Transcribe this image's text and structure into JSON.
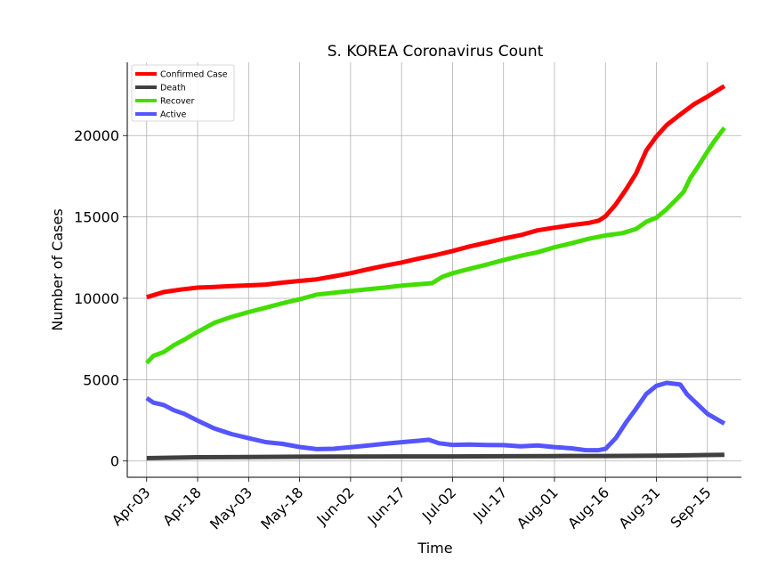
{
  "chart_data": {
    "type": "line",
    "title": "S. KOREA Coronavirus Count",
    "xlabel": "Time",
    "ylabel": "Number of Cases",
    "x_ticks": [
      "Apr-03",
      "Apr-18",
      "May-03",
      "May-18",
      "Jun-02",
      "Jun-17",
      "Jul-02",
      "Jul-17",
      "Aug-01",
      "Aug-16",
      "Aug-31",
      "Sep-15"
    ],
    "y_ticks": [
      0,
      5000,
      10000,
      15000,
      20000
    ],
    "ylim": [
      -1000,
      24500
    ],
    "x_start": "2020-04-03",
    "x_end": "2020-09-20",
    "grid": true,
    "legend_position": "top-left",
    "series": [
      {
        "name": "Confirmed Case",
        "color": "#ff0000",
        "points": [
          [
            "2020-04-03",
            10062
          ],
          [
            "2020-04-08",
            10384
          ],
          [
            "2020-04-13",
            10537
          ],
          [
            "2020-04-18",
            10653
          ],
          [
            "2020-04-23",
            10702
          ],
          [
            "2020-04-28",
            10752
          ],
          [
            "2020-05-03",
            10793
          ],
          [
            "2020-05-08",
            10840
          ],
          [
            "2020-05-13",
            10962
          ],
          [
            "2020-05-18",
            11065
          ],
          [
            "2020-05-23",
            11165
          ],
          [
            "2020-05-28",
            11344
          ],
          [
            "2020-06-02",
            11541
          ],
          [
            "2020-06-07",
            11776
          ],
          [
            "2020-06-12",
            12003
          ],
          [
            "2020-06-17",
            12198
          ],
          [
            "2020-06-22",
            12438
          ],
          [
            "2020-06-27",
            12653
          ],
          [
            "2020-07-02",
            12904
          ],
          [
            "2020-07-07",
            13181
          ],
          [
            "2020-07-12",
            13417
          ],
          [
            "2020-07-17",
            13672
          ],
          [
            "2020-07-22",
            13879
          ],
          [
            "2020-07-27",
            14175
          ],
          [
            "2020-08-01",
            14336
          ],
          [
            "2020-08-06",
            14499
          ],
          [
            "2020-08-11",
            14626
          ],
          [
            "2020-08-14",
            14770
          ],
          [
            "2020-08-16",
            15039
          ],
          [
            "2020-08-19",
            15761
          ],
          [
            "2020-08-22",
            16670
          ],
          [
            "2020-08-25",
            17665
          ],
          [
            "2020-08-28",
            19077
          ],
          [
            "2020-08-31",
            19947
          ],
          [
            "2020-09-03",
            20644
          ],
          [
            "2020-09-07",
            21296
          ],
          [
            "2020-09-11",
            21919
          ],
          [
            "2020-09-15",
            22391
          ],
          [
            "2020-09-20",
            23045
          ]
        ]
      },
      {
        "name": "Death",
        "color": "#404040",
        "points": [
          [
            "2020-04-03",
            174
          ],
          [
            "2020-04-18",
            232
          ],
          [
            "2020-05-03",
            250
          ],
          [
            "2020-05-18",
            263
          ],
          [
            "2020-06-02",
            273
          ],
          [
            "2020-06-17",
            279
          ],
          [
            "2020-07-02",
            283
          ],
          [
            "2020-07-17",
            292
          ],
          [
            "2020-08-01",
            301
          ],
          [
            "2020-08-16",
            306
          ],
          [
            "2020-08-31",
            326
          ],
          [
            "2020-09-15",
            367
          ],
          [
            "2020-09-20",
            385
          ]
        ]
      },
      {
        "name": "Recover",
        "color": "#44dd00",
        "points": [
          [
            "2020-04-03",
            6021
          ],
          [
            "2020-04-05",
            6463
          ],
          [
            "2020-04-08",
            6694
          ],
          [
            "2020-04-11",
            7117
          ],
          [
            "2020-04-14",
            7447
          ],
          [
            "2020-04-18",
            7937
          ],
          [
            "2020-04-23",
            8501
          ],
          [
            "2020-04-28",
            8854
          ],
          [
            "2020-05-03",
            9149
          ],
          [
            "2020-05-08",
            9419
          ],
          [
            "2020-05-13",
            9695
          ],
          [
            "2020-05-18",
            9938
          ],
          [
            "2020-05-23",
            10226
          ],
          [
            "2020-05-28",
            10340
          ],
          [
            "2020-06-02",
            10446
          ],
          [
            "2020-06-07",
            10552
          ],
          [
            "2020-06-12",
            10654
          ],
          [
            "2020-06-17",
            10774
          ],
          [
            "2020-06-22",
            10856
          ],
          [
            "2020-06-26",
            10930
          ],
          [
            "2020-06-29",
            11317
          ],
          [
            "2020-07-02",
            11537
          ],
          [
            "2020-07-07",
            11811
          ],
          [
            "2020-07-12",
            12066
          ],
          [
            "2020-07-17",
            12348
          ],
          [
            "2020-07-22",
            12610
          ],
          [
            "2020-07-27",
            12829
          ],
          [
            "2020-08-01",
            13133
          ],
          [
            "2020-08-06",
            13380
          ],
          [
            "2020-08-11",
            13655
          ],
          [
            "2020-08-16",
            13863
          ],
          [
            "2020-08-21",
            14006
          ],
          [
            "2020-08-25",
            14255
          ],
          [
            "2020-08-28",
            14700
          ],
          [
            "2020-08-31",
            14955
          ],
          [
            "2020-09-03",
            15476
          ],
          [
            "2020-09-06",
            16101
          ],
          [
            "2020-09-08",
            16541
          ],
          [
            "2020-09-10",
            17400
          ],
          [
            "2020-09-12",
            18020
          ],
          [
            "2020-09-15",
            19012
          ],
          [
            "2020-09-17",
            19650
          ],
          [
            "2020-09-20",
            20478
          ]
        ]
      },
      {
        "name": "Active",
        "color": "#5555ff",
        "points": [
          [
            "2020-04-03",
            3867
          ],
          [
            "2020-04-05",
            3584
          ],
          [
            "2020-04-08",
            3445
          ],
          [
            "2020-04-11",
            3119
          ],
          [
            "2020-04-14",
            2902
          ],
          [
            "2020-04-18",
            2479
          ],
          [
            "2020-04-23",
            1992
          ],
          [
            "2020-04-28",
            1654
          ],
          [
            "2020-05-03",
            1401
          ],
          [
            "2020-05-08",
            1160
          ],
          [
            "2020-05-13",
            1053
          ],
          [
            "2020-05-18",
            859
          ],
          [
            "2020-05-23",
            729
          ],
          [
            "2020-05-28",
            752
          ],
          [
            "2020-06-02",
            850
          ],
          [
            "2020-06-07",
            948
          ],
          [
            "2020-06-12",
            1058
          ],
          [
            "2020-06-17",
            1154
          ],
          [
            "2020-06-22",
            1245
          ],
          [
            "2020-06-25",
            1305
          ],
          [
            "2020-06-28",
            1092
          ],
          [
            "2020-07-02",
            993
          ],
          [
            "2020-07-07",
            1013
          ],
          [
            "2020-07-12",
            984
          ],
          [
            "2020-07-17",
            975
          ],
          [
            "2020-07-22",
            905
          ],
          [
            "2020-07-27",
            961
          ],
          [
            "2020-08-01",
            855
          ],
          [
            "2020-08-06",
            781
          ],
          [
            "2020-08-10",
            670
          ],
          [
            "2020-08-14",
            661
          ],
          [
            "2020-08-16",
            747
          ],
          [
            "2020-08-19",
            1395
          ],
          [
            "2020-08-22",
            2353
          ],
          [
            "2020-08-25",
            3208
          ],
          [
            "2020-08-28",
            4118
          ],
          [
            "2020-08-31",
            4618
          ],
          [
            "2020-09-03",
            4800
          ],
          [
            "2020-09-07",
            4700
          ],
          [
            "2020-09-09",
            4100
          ],
          [
            "2020-09-12",
            3500
          ],
          [
            "2020-09-15",
            2900
          ],
          [
            "2020-09-20",
            2300
          ]
        ]
      }
    ]
  }
}
